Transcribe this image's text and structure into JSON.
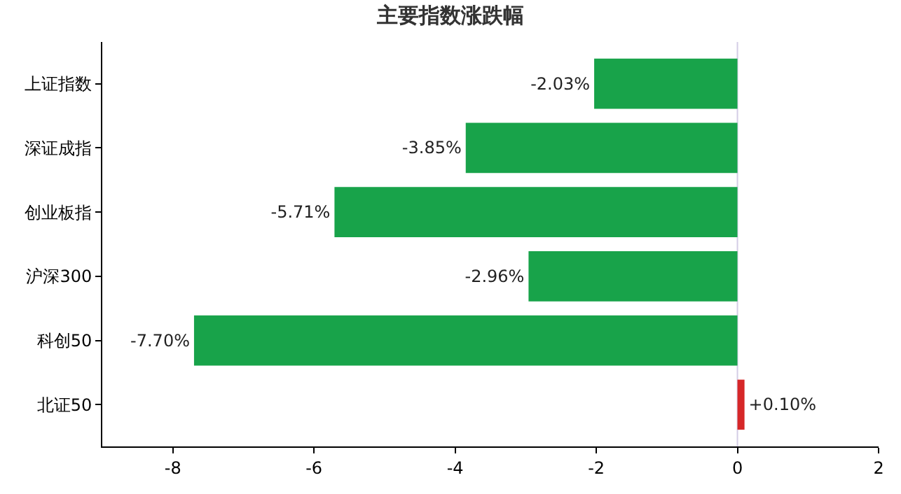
{
  "chart_data": {
    "type": "bar",
    "orientation": "horizontal",
    "title": "主要指数涨跌幅",
    "categories": [
      "上证指数",
      "深证成指",
      "创业板指",
      "沪深300",
      "科创50",
      "北证50"
    ],
    "values": [
      -2.03,
      -3.85,
      -5.71,
      -2.96,
      -7.7,
      0.1
    ],
    "colors": [
      "#18a34a",
      "#18a34a",
      "#18a34a",
      "#18a34a",
      "#18a34a",
      "#d62728"
    ],
    "value_labels": [
      "-2.03%",
      "-3.85%",
      "-5.71%",
      "-2.96%",
      "-7.70%",
      "+0.10%"
    ],
    "xlim": [
      -9,
      2
    ],
    "xticks": [
      -8,
      -6,
      -4,
      -2,
      0,
      2
    ],
    "ref_lines": [
      {
        "axis": "x",
        "value": 0,
        "label": null,
        "color": "#d4cde6"
      }
    ],
    "grid": false,
    "legend": false
  }
}
